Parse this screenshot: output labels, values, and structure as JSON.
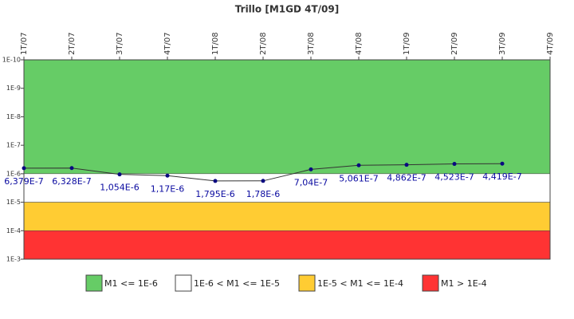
{
  "chart_data": {
    "type": "line",
    "title": "Trillo [M1GD 4T/09]",
    "categories": [
      "1T/07",
      "2T/07",
      "3T/07",
      "4T/07",
      "1T/08",
      "2T/08",
      "3T/08",
      "4T/08",
      "1T/09",
      "2T/09",
      "3T/09",
      "4T/09"
    ],
    "series": [
      {
        "name": "M1",
        "color": "#333333",
        "marker_color": "#0a0a80",
        "values": [
          6.379e-07,
          6.328e-07,
          1.054e-06,
          1.17e-06,
          1.795e-06,
          1.78e-06,
          7.04e-07,
          5.061e-07,
          4.862e-07,
          4.523e-07,
          4.419e-07,
          null
        ],
        "value_labels": [
          "6,379E-7",
          "6,328E-7",
          "1,054E-6",
          "1,17E-6",
          "1,795E-6",
          "1,78E-6",
          "7,04E-7",
          "5,061E-7",
          "4,862E-7",
          "4,523E-7",
          "4,419E-7",
          null
        ]
      }
    ],
    "log_scale": true,
    "ylim": [
      0.001,
      1e-10
    ],
    "yticks": [
      {
        "value": 1e-10,
        "label": "1E-10"
      },
      {
        "value": 1e-09,
        "label": "1E-9"
      },
      {
        "value": 1e-08,
        "label": "1E-8"
      },
      {
        "value": 1e-07,
        "label": "1E-7"
      },
      {
        "value": 1e-06,
        "label": "1E-6"
      },
      {
        "value": 1e-05,
        "label": "1E-5"
      },
      {
        "value": 0.0001,
        "label": "1E-4"
      },
      {
        "value": 0.001,
        "label": "1E-3"
      }
    ],
    "bands": [
      {
        "name": "M1 <= 1E-6",
        "color": "#66cc66",
        "from": 1e-10,
        "to": 1e-06
      },
      {
        "name": "1E-6 < M1 <= 1E-5",
        "color": "#ffffff",
        "from": 1e-06,
        "to": 1e-05
      },
      {
        "name": "1E-5 < M1 <= 1E-4",
        "color": "#ffcc33",
        "from": 1e-05,
        "to": 0.0001
      },
      {
        "name": "M1 > 1E-4",
        "color": "#ff3333",
        "from": 0.0001,
        "to": 0.001
      }
    ]
  }
}
